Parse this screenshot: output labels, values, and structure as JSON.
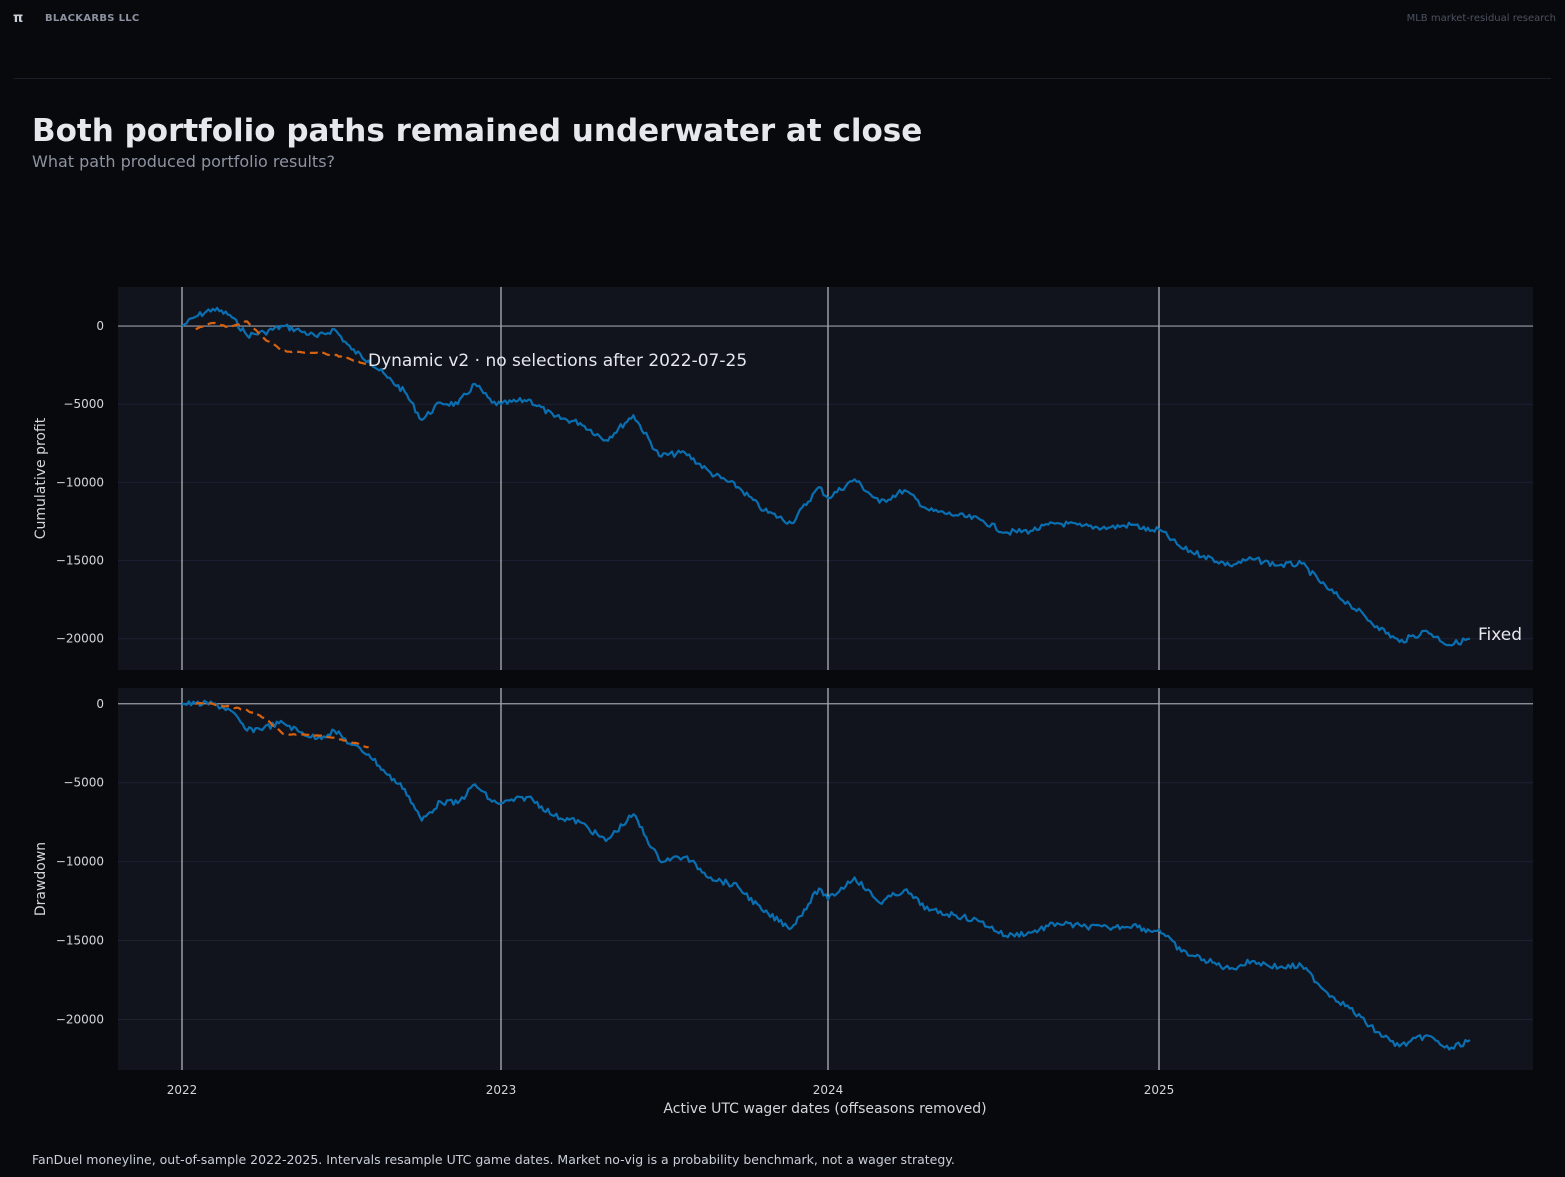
{
  "header": {
    "logo_glyph": "π",
    "brand": "BLACKARBS LLC",
    "research": "MLB market-residual research"
  },
  "title": "Both portfolio paths remained underwater at close",
  "subtitle": "What path produced portfolio results?",
  "footer": "FanDuel moneyline, out-of-sample 2022-2025. Intervals resample UTC game dates. Market no-vig is a probability benchmark, not a wager strategy.",
  "colors": {
    "background": "#08090d",
    "panel": "#11131d",
    "fixed": "#0a6fb0",
    "dynamic": "#d9620f",
    "zero_line": "#9a9ea8",
    "season_line": "#dfe2e8"
  },
  "chart_data": [
    {
      "type": "line",
      "ylabel": "Cumulative profit",
      "ylim": [
        -22000,
        2500
      ],
      "yticks": [
        0,
        -5000,
        -10000,
        -15000,
        -20000
      ],
      "grid": true,
      "annotation": "Dynamic v2 · no selections after 2022-07-25",
      "end_label": "Fixed",
      "series": [
        {
          "name": "Fixed",
          "style": "solid",
          "x": [
            "2022-04-07",
            "2022-04-15",
            "2022-04-25",
            "2022-05-05",
            "2022-05-15",
            "2022-05-25",
            "2022-06-05",
            "2022-06-15",
            "2022-06-25",
            "2022-07-05",
            "2022-07-15",
            "2022-07-25",
            "2022-08-05",
            "2022-08-15",
            "2022-08-25",
            "2022-09-05",
            "2022-09-15",
            "2022-09-25",
            "2022-10-05",
            "2023-03-30",
            "2023-04-15",
            "2023-04-30",
            "2023-05-15",
            "2023-05-30",
            "2023-06-15",
            "2023-06-30",
            "2023-07-15",
            "2023-07-30",
            "2023-08-15",
            "2023-08-30",
            "2023-09-15",
            "2023-10-01",
            "2024-03-20",
            "2024-04-05",
            "2024-04-20",
            "2024-05-05",
            "2024-05-20",
            "2024-06-05",
            "2024-06-20",
            "2024-07-05",
            "2024-07-20",
            "2024-08-05",
            "2024-08-20",
            "2024-09-05",
            "2024-09-20",
            "2024-09-30",
            "2025-03-18",
            "2025-04-01",
            "2025-04-15",
            "2025-05-01",
            "2025-05-15",
            "2025-06-01",
            "2025-06-15",
            "2025-07-01",
            "2025-07-15",
            "2025-08-01",
            "2025-08-15",
            "2025-09-01",
            "2025-09-15",
            "2025-09-28"
          ],
          "y": [
            0,
            600,
            1100,
            700,
            -600,
            -400,
            0,
            -300,
            -700,
            -200,
            -1500,
            -2200,
            -3300,
            -4200,
            -6000,
            -4900,
            -5000,
            -3700,
            -4900,
            -5000,
            -4700,
            -5800,
            -6200,
            -7300,
            -5700,
            -8300,
            -8100,
            -9400,
            -10300,
            -11800,
            -12600,
            -10300,
            -11000,
            -9800,
            -11300,
            -10500,
            -11800,
            -12100,
            -12400,
            -13200,
            -13100,
            -12600,
            -12800,
            -12900,
            -12700,
            -13100,
            -13000,
            -14200,
            -14700,
            -15300,
            -14900,
            -15300,
            -15200,
            -16800,
            -17800,
            -19200,
            -20200,
            -19500,
            -20400,
            -20000
          ]
        },
        {
          "name": "Dynamic v2",
          "style": "dashed",
          "x": [
            "2022-04-15",
            "2022-04-25",
            "2022-05-05",
            "2022-05-15",
            "2022-05-25",
            "2022-06-05",
            "2022-06-15",
            "2022-06-25",
            "2022-07-05",
            "2022-07-15",
            "2022-07-25"
          ],
          "y": [
            -200,
            200,
            -100,
            300,
            -800,
            -1600,
            -1650,
            -1700,
            -1850,
            -2150,
            -2450
          ]
        }
      ]
    },
    {
      "type": "line",
      "ylabel": "Drawdown",
      "xlabel": "Active UTC wager dates (offseasons removed)",
      "ylim": [
        -23200,
        1000
      ],
      "yticks": [
        0,
        -5000,
        -10000,
        -15000,
        -20000
      ],
      "xticks": [
        "2022",
        "2023",
        "2024",
        "2025"
      ],
      "grid": true,
      "series": [
        {
          "name": "Fixed",
          "style": "solid",
          "x": [
            "2022-04-07",
            "2022-04-15",
            "2022-04-25",
            "2022-05-05",
            "2022-05-15",
            "2022-05-25",
            "2022-06-05",
            "2022-06-15",
            "2022-06-25",
            "2022-07-05",
            "2022-07-15",
            "2022-07-25",
            "2022-08-05",
            "2022-08-15",
            "2022-08-25",
            "2022-09-05",
            "2022-09-15",
            "2022-09-25",
            "2022-10-05",
            "2023-03-30",
            "2023-04-15",
            "2023-04-30",
            "2023-05-15",
            "2023-05-30",
            "2023-06-15",
            "2023-06-30",
            "2023-07-15",
            "2023-07-30",
            "2023-08-15",
            "2023-08-30",
            "2023-09-15",
            "2023-10-01",
            "2024-03-20",
            "2024-04-05",
            "2024-04-20",
            "2024-05-05",
            "2024-05-20",
            "2024-06-05",
            "2024-06-20",
            "2024-07-05",
            "2024-07-20",
            "2024-08-05",
            "2024-08-20",
            "2024-09-05",
            "2024-09-20",
            "2024-09-30",
            "2025-03-18",
            "2025-04-01",
            "2025-04-15",
            "2025-05-01",
            "2025-05-15",
            "2025-06-01",
            "2025-06-15",
            "2025-07-01",
            "2025-07-15",
            "2025-08-01",
            "2025-08-15",
            "2025-09-01",
            "2025-09-15",
            "2025-09-28"
          ],
          "y": [
            0,
            0,
            0,
            -400,
            -1700,
            -1500,
            -1200,
            -1800,
            -2200,
            -1700,
            -2600,
            -3200,
            -4500,
            -5400,
            -7400,
            -6200,
            -6300,
            -5100,
            -6200,
            -6300,
            -5900,
            -7100,
            -7500,
            -8700,
            -7000,
            -9900,
            -9700,
            -11000,
            -11600,
            -13200,
            -14200,
            -11700,
            -12400,
            -11000,
            -12600,
            -11800,
            -13100,
            -13400,
            -13800,
            -14700,
            -14500,
            -13900,
            -14100,
            -14200,
            -14000,
            -14400,
            -14300,
            -15700,
            -16200,
            -16800,
            -16300,
            -16700,
            -16600,
            -18300,
            -19300,
            -20800,
            -21700,
            -21000,
            -21900,
            -21300
          ]
        },
        {
          "name": "Dynamic v2",
          "style": "dashed",
          "x": [
            "2022-04-15",
            "2022-04-25",
            "2022-05-05",
            "2022-05-15",
            "2022-05-25",
            "2022-06-05",
            "2022-06-15",
            "2022-06-25",
            "2022-07-05",
            "2022-07-15",
            "2022-07-25"
          ],
          "y": [
            0,
            0,
            -200,
            -400,
            -900,
            -1900,
            -1950,
            -2000,
            -2150,
            -2450,
            -2750
          ]
        }
      ]
    }
  ]
}
